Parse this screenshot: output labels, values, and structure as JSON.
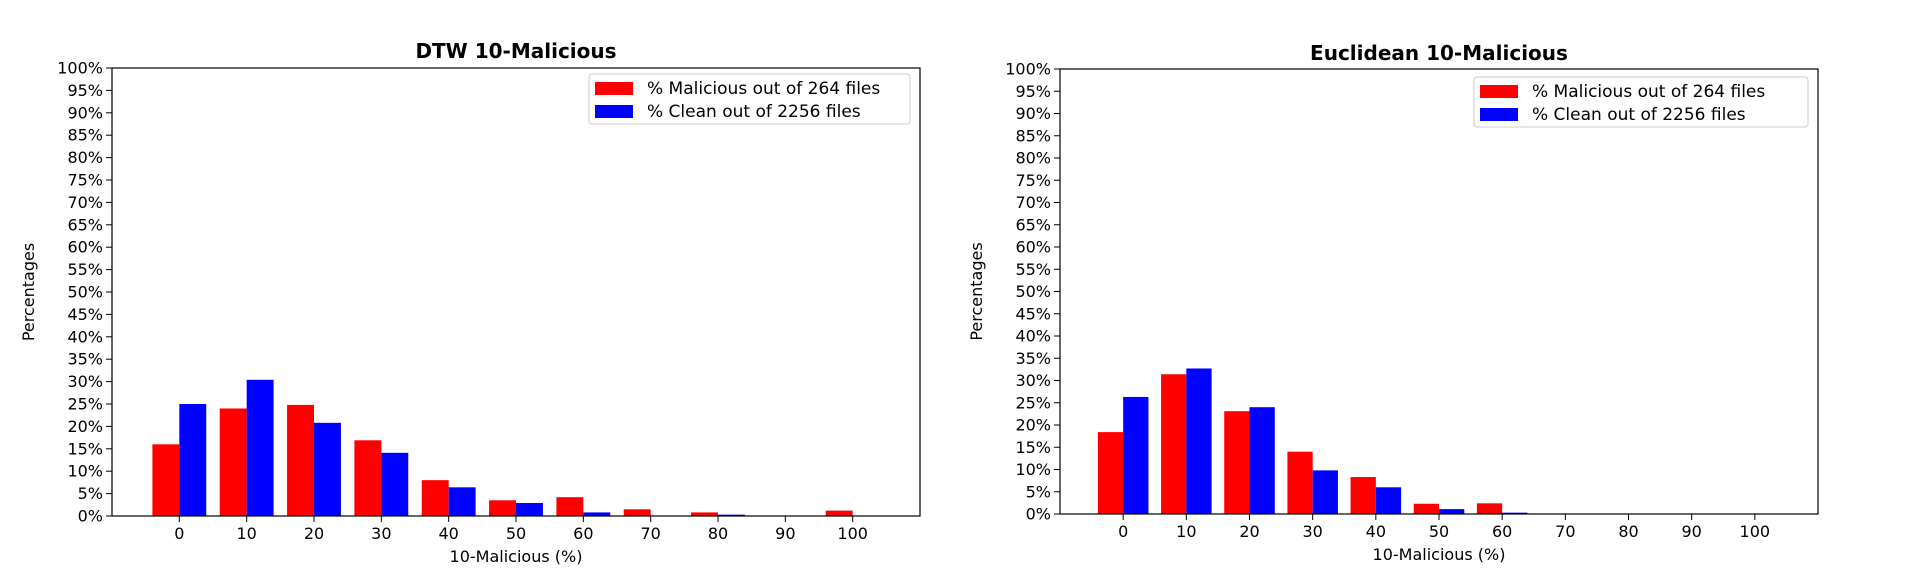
{
  "chart_data": [
    {
      "type": "bar",
      "title": "DTW 10-Malicious",
      "xlabel": "10-Malicious (%)",
      "ylabel": "Percentages",
      "categories": [
        "0",
        "10",
        "20",
        "30",
        "40",
        "50",
        "60",
        "70",
        "80",
        "90",
        "100"
      ],
      "yticks": [
        "0%",
        "5%",
        "10%",
        "15%",
        "20%",
        "25%",
        "30%",
        "35%",
        "40%",
        "45%",
        "50%",
        "55%",
        "60%",
        "65%",
        "70%",
        "75%",
        "80%",
        "85%",
        "90%",
        "95%",
        "100%"
      ],
      "ylim": [
        0,
        100
      ],
      "legend_position": "top-right",
      "series": [
        {
          "name": "% Malicious out of 264 files",
          "color": "#ff0000",
          "values": [
            16.0,
            24.0,
            24.8,
            16.9,
            8.0,
            3.5,
            4.2,
            1.5,
            0.8,
            0.0,
            1.2
          ]
        },
        {
          "name": "% Clean out of 2256 files",
          "color": "#0000ff",
          "values": [
            25.0,
            30.4,
            20.8,
            14.1,
            6.4,
            2.9,
            0.8,
            0.0,
            0.3,
            0.0,
            0.0
          ]
        }
      ]
    },
    {
      "type": "bar",
      "title": "Euclidean 10-Malicious",
      "xlabel": "10-Malicious (%)",
      "ylabel": "Percentages",
      "categories": [
        "0",
        "10",
        "20",
        "30",
        "40",
        "50",
        "60",
        "70",
        "80",
        "90",
        "100"
      ],
      "yticks": [
        "0%",
        "5%",
        "10%",
        "15%",
        "20%",
        "25%",
        "30%",
        "35%",
        "40%",
        "45%",
        "50%",
        "55%",
        "60%",
        "65%",
        "70%",
        "75%",
        "80%",
        "85%",
        "90%",
        "95%",
        "100%"
      ],
      "ylim": [
        0,
        100
      ],
      "legend_position": "top-right",
      "series": [
        {
          "name": "% Malicious out of 264 files",
          "color": "#ff0000",
          "values": [
            18.4,
            31.4,
            23.1,
            14.0,
            8.3,
            2.3,
            2.4,
            0.0,
            0.0,
            0.0,
            0.0
          ]
        },
        {
          "name": "% Clean out of 2256 files",
          "color": "#0000ff",
          "values": [
            26.3,
            32.7,
            24.0,
            9.8,
            6.0,
            1.1,
            0.3,
            0.1,
            0.1,
            0.0,
            0.0
          ]
        }
      ]
    }
  ]
}
